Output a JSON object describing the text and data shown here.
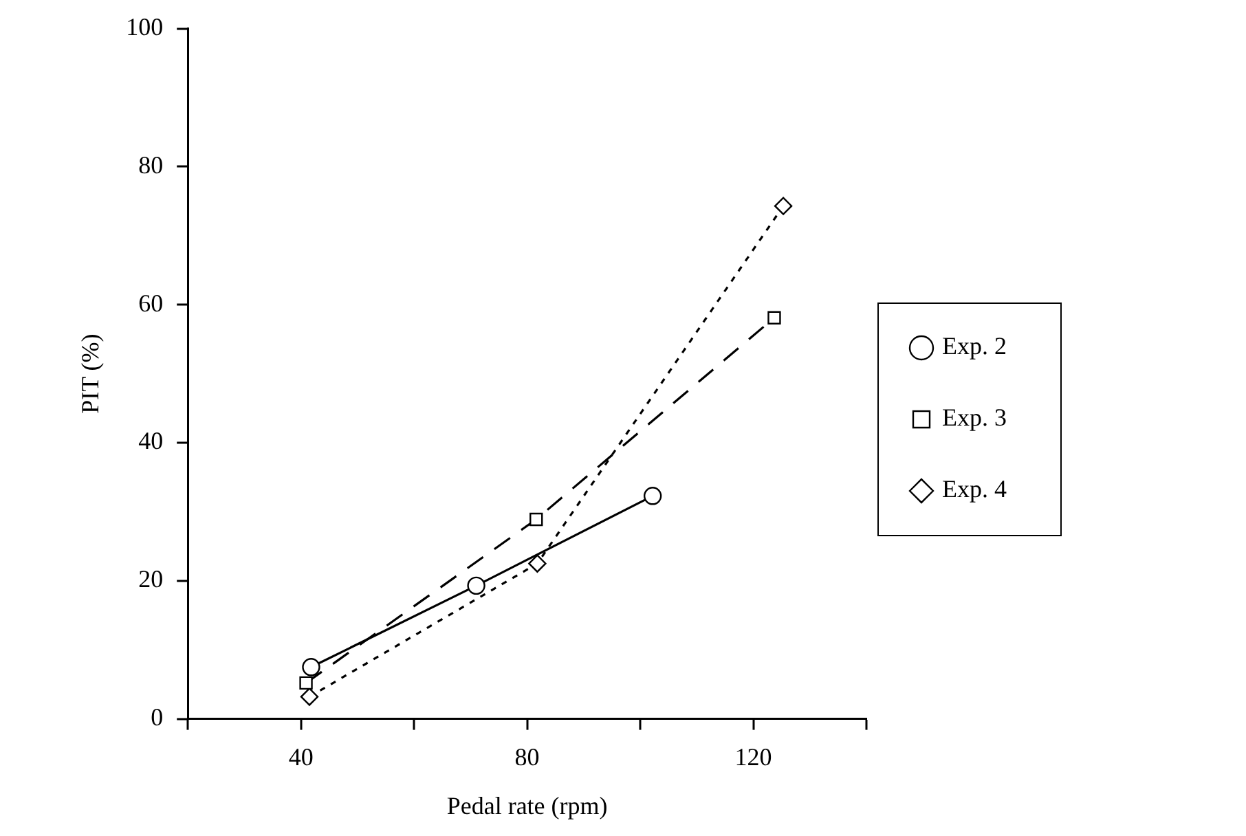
{
  "chart_data": {
    "type": "line",
    "xlabel": "Pedal rate (rpm)",
    "ylabel": "PIT (%)",
    "xlim": [
      20,
      140
    ],
    "xticks": [
      {
        "value": 20,
        "label": null
      },
      40,
      {
        "value": 60,
        "label": null
      },
      80,
      {
        "value": 100,
        "label": null
      },
      120,
      {
        "value": 140,
        "label": null
      }
    ],
    "ylim": [
      0,
      100
    ],
    "yticks": [
      0,
      20,
      40,
      60,
      80,
      100
    ],
    "grid": false,
    "legend": "right",
    "series": [
      {
        "name": "Exp. 2",
        "color": "#000000",
        "marker": "circle",
        "line_style": "solid",
        "x": [
          41.8,
          71.0,
          102.2
        ],
        "values": [
          7.5,
          19.3,
          32.3
        ]
      },
      {
        "name": "Exp. 3",
        "color": "#000000",
        "marker": "square",
        "line_style": "dashed",
        "x": [
          40.9,
          81.6,
          123.7
        ],
        "values": [
          5.2,
          28.9,
          58.1
        ]
      },
      {
        "name": "Exp. 4",
        "color": "#000000",
        "marker": "diamond",
        "line_style": "dotted",
        "x": [
          41.5,
          81.8,
          125.3
        ],
        "values": [
          3.2,
          22.5,
          74.3
        ]
      }
    ]
  }
}
